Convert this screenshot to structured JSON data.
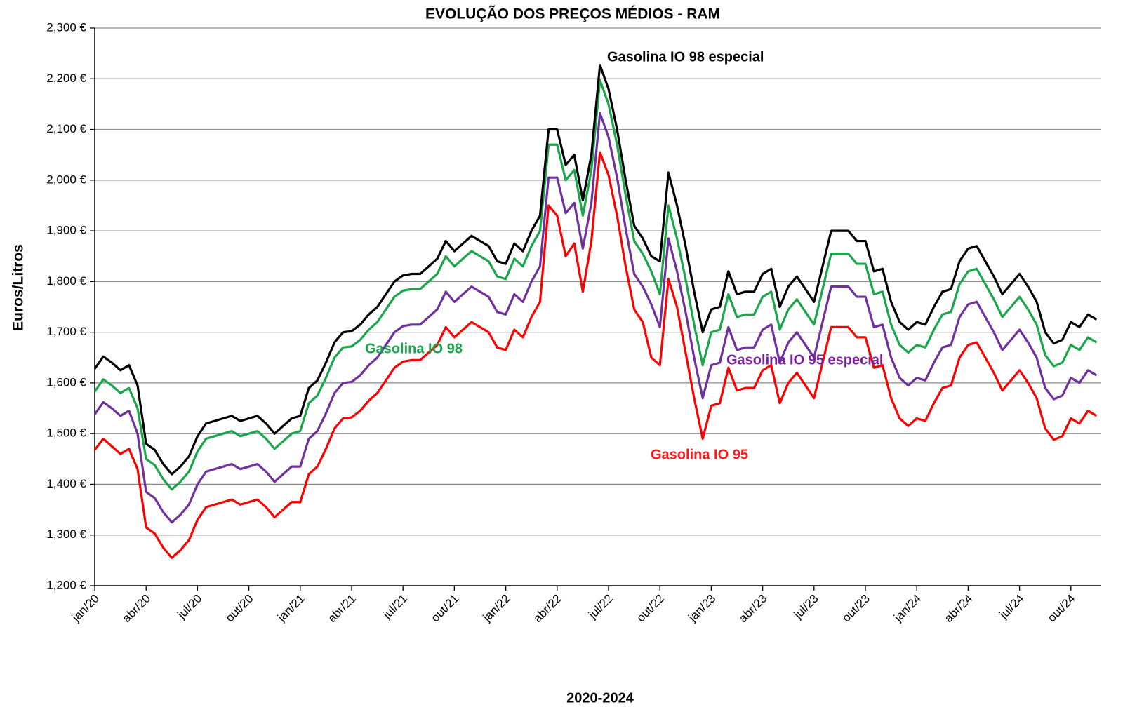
{
  "chart_data": {
    "type": "line",
    "title": "EVOLUÇÃO DOS PREÇOS MÉDIOS - RAM",
    "y_label": "Euros/Litros",
    "x_label": "2020-2024",
    "grid": true,
    "ylim": [
      1.2,
      2.3
    ],
    "yticks": [
      {
        "value": 1.2,
        "label": "1,200 €"
      },
      {
        "value": 1.3,
        "label": "1,300 €"
      },
      {
        "value": 1.4,
        "label": "1,400 €"
      },
      {
        "value": 1.5,
        "label": "1,500 €"
      },
      {
        "value": 1.6,
        "label": "1,600 €"
      },
      {
        "value": 1.7,
        "label": "1,700 €"
      },
      {
        "value": 1.8,
        "label": "1,800 €"
      },
      {
        "value": 1.9,
        "label": "1,900 €"
      },
      {
        "value": 2.0,
        "label": "2,000 €"
      },
      {
        "value": 2.1,
        "label": "2,100 €"
      },
      {
        "value": 2.2,
        "label": "2,200 €"
      },
      {
        "value": 2.3,
        "label": "2,300 €"
      }
    ],
    "categories": [
      "jan/20",
      null,
      null,
      null,
      null,
      null,
      "abr/20",
      null,
      null,
      null,
      null,
      null,
      "jul/20",
      null,
      null,
      null,
      null,
      null,
      "out/20",
      null,
      null,
      null,
      null,
      null,
      "jan/21",
      null,
      null,
      null,
      null,
      null,
      "abr/21",
      null,
      null,
      null,
      null,
      null,
      "jul/21",
      null,
      null,
      null,
      null,
      null,
      "out/21",
      null,
      null,
      null,
      null,
      null,
      "jan/22",
      null,
      null,
      null,
      null,
      null,
      "abr/22",
      null,
      null,
      null,
      null,
      null,
      "jul/22",
      null,
      null,
      null,
      null,
      null,
      "out/22",
      null,
      null,
      null,
      null,
      null,
      "jan/23",
      null,
      null,
      null,
      null,
      null,
      "abr/23",
      null,
      null,
      null,
      null,
      null,
      "jul/23",
      null,
      null,
      null,
      null,
      null,
      "out/23",
      null,
      null,
      null,
      null,
      null,
      "jan/24",
      null,
      null,
      null,
      null,
      null,
      "abr/24",
      null,
      null,
      null,
      null,
      null,
      "jul/24",
      null,
      null,
      null,
      null,
      null,
      "out/24",
      null,
      null,
      null
    ],
    "series": [
      {
        "name": "Gasolina IO 98 especial",
        "color": "#000000",
        "values": [
          1.628,
          1.652,
          1.64,
          1.625,
          1.635,
          1.595,
          1.48,
          1.468,
          1.44,
          1.42,
          1.435,
          1.455,
          1.495,
          1.52,
          1.525,
          1.53,
          1.535,
          1.525,
          1.53,
          1.535,
          1.52,
          1.5,
          1.515,
          1.53,
          1.535,
          1.59,
          1.605,
          1.64,
          1.68,
          1.7,
          1.702,
          1.715,
          1.735,
          1.75,
          1.775,
          1.8,
          1.812,
          1.815,
          1.815,
          1.83,
          1.845,
          1.88,
          1.86,
          1.875,
          1.89,
          1.88,
          1.87,
          1.84,
          1.835,
          1.875,
          1.86,
          1.9,
          1.93,
          2.1,
          2.1,
          2.03,
          2.05,
          1.96,
          2.05,
          2.227,
          2.18,
          2.1,
          2.0,
          1.91,
          1.885,
          1.85,
          1.84,
          2.015,
          1.95,
          1.87,
          1.78,
          1.7,
          1.745,
          1.75,
          1.82,
          1.775,
          1.78,
          1.78,
          1.815,
          1.825,
          1.75,
          1.79,
          1.81,
          1.785,
          1.76,
          1.83,
          1.9,
          1.9,
          1.9,
          1.88,
          1.88,
          1.82,
          1.825,
          1.76,
          1.72,
          1.705,
          1.72,
          1.715,
          1.75,
          1.78,
          1.785,
          1.84,
          1.865,
          1.87,
          1.84,
          1.81,
          1.775,
          1.795,
          1.815,
          1.79,
          1.76,
          1.7,
          1.678,
          1.685,
          1.72,
          1.71,
          1.735,
          1.725
        ]
      },
      {
        "name": "Gasolina IO 98",
        "color": "#1aa64a",
        "values": [
          1.583,
          1.607,
          1.595,
          1.58,
          1.59,
          1.55,
          1.45,
          1.438,
          1.41,
          1.39,
          1.405,
          1.425,
          1.465,
          1.49,
          1.495,
          1.5,
          1.505,
          1.495,
          1.5,
          1.505,
          1.49,
          1.47,
          1.485,
          1.5,
          1.505,
          1.56,
          1.575,
          1.61,
          1.65,
          1.67,
          1.672,
          1.685,
          1.705,
          1.72,
          1.745,
          1.77,
          1.782,
          1.785,
          1.785,
          1.8,
          1.815,
          1.85,
          1.83,
          1.845,
          1.86,
          1.85,
          1.84,
          1.81,
          1.805,
          1.845,
          1.83,
          1.87,
          1.9,
          2.07,
          2.07,
          2.0,
          2.02,
          1.93,
          2.02,
          2.197,
          2.15,
          2.07,
          1.97,
          1.88,
          1.855,
          1.82,
          1.775,
          1.95,
          1.885,
          1.805,
          1.715,
          1.635,
          1.7,
          1.705,
          1.775,
          1.73,
          1.735,
          1.735,
          1.77,
          1.78,
          1.705,
          1.745,
          1.765,
          1.74,
          1.715,
          1.785,
          1.855,
          1.855,
          1.855,
          1.835,
          1.835,
          1.775,
          1.78,
          1.715,
          1.675,
          1.66,
          1.675,
          1.67,
          1.705,
          1.735,
          1.74,
          1.795,
          1.82,
          1.825,
          1.795,
          1.765,
          1.73,
          1.75,
          1.77,
          1.745,
          1.715,
          1.655,
          1.633,
          1.64,
          1.675,
          1.665,
          1.69,
          1.68
        ]
      },
      {
        "name": "Gasolina IO 95 especial",
        "color": "#7030a0",
        "values": [
          1.538,
          1.562,
          1.55,
          1.535,
          1.545,
          1.5,
          1.385,
          1.373,
          1.345,
          1.325,
          1.34,
          1.36,
          1.4,
          1.425,
          1.43,
          1.435,
          1.44,
          1.43,
          1.435,
          1.44,
          1.425,
          1.405,
          1.42,
          1.435,
          1.435,
          1.49,
          1.505,
          1.54,
          1.58,
          1.6,
          1.602,
          1.615,
          1.635,
          1.65,
          1.675,
          1.7,
          1.712,
          1.715,
          1.715,
          1.73,
          1.745,
          1.78,
          1.76,
          1.775,
          1.79,
          1.78,
          1.77,
          1.74,
          1.735,
          1.775,
          1.76,
          1.8,
          1.83,
          2.005,
          2.005,
          1.935,
          1.955,
          1.865,
          1.955,
          2.132,
          2.085,
          2.005,
          1.905,
          1.815,
          1.79,
          1.755,
          1.71,
          1.885,
          1.82,
          1.74,
          1.65,
          1.57,
          1.635,
          1.64,
          1.71,
          1.665,
          1.67,
          1.67,
          1.705,
          1.715,
          1.64,
          1.68,
          1.7,
          1.675,
          1.65,
          1.72,
          1.79,
          1.79,
          1.79,
          1.77,
          1.77,
          1.71,
          1.715,
          1.65,
          1.61,
          1.595,
          1.61,
          1.605,
          1.64,
          1.67,
          1.675,
          1.73,
          1.755,
          1.76,
          1.73,
          1.7,
          1.665,
          1.685,
          1.705,
          1.68,
          1.65,
          1.59,
          1.568,
          1.575,
          1.61,
          1.6,
          1.625,
          1.615
        ]
      },
      {
        "name": "Gasolina IO 95",
        "color": "#ff0000",
        "values": [
          1.468,
          1.49,
          1.475,
          1.46,
          1.47,
          1.43,
          1.315,
          1.303,
          1.275,
          1.255,
          1.27,
          1.29,
          1.33,
          1.355,
          1.36,
          1.365,
          1.37,
          1.36,
          1.365,
          1.37,
          1.355,
          1.335,
          1.35,
          1.365,
          1.365,
          1.42,
          1.435,
          1.47,
          1.51,
          1.53,
          1.532,
          1.545,
          1.565,
          1.58,
          1.605,
          1.63,
          1.642,
          1.645,
          1.645,
          1.66,
          1.675,
          1.71,
          1.69,
          1.705,
          1.72,
          1.71,
          1.7,
          1.67,
          1.665,
          1.705,
          1.69,
          1.73,
          1.76,
          1.95,
          1.93,
          1.85,
          1.875,
          1.78,
          1.88,
          2.055,
          2.01,
          1.93,
          1.83,
          1.745,
          1.72,
          1.65,
          1.635,
          1.805,
          1.75,
          1.66,
          1.57,
          1.49,
          1.555,
          1.56,
          1.63,
          1.585,
          1.59,
          1.59,
          1.625,
          1.635,
          1.56,
          1.6,
          1.62,
          1.595,
          1.57,
          1.64,
          1.71,
          1.71,
          1.71,
          1.69,
          1.69,
          1.63,
          1.635,
          1.57,
          1.53,
          1.515,
          1.53,
          1.525,
          1.56,
          1.59,
          1.595,
          1.65,
          1.675,
          1.68,
          1.65,
          1.62,
          1.585,
          1.605,
          1.625,
          1.6,
          1.57,
          1.51,
          1.488,
          1.495,
          1.53,
          1.52,
          1.545,
          1.535
        ]
      }
    ]
  }
}
